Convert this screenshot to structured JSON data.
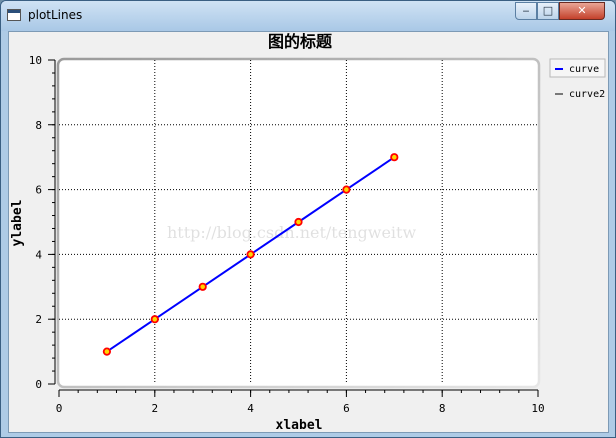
{
  "window": {
    "title": "plotLines",
    "minimize_glyph": "‒",
    "maximize_glyph": "□",
    "close_glyph": "✕"
  },
  "watermark": "http://blog.csdn.net/tengweitw",
  "colors": {
    "curve": "#0000ff",
    "marker_fill": "#ffd700",
    "marker_edge": "#ff0000",
    "curve2": "#000000"
  },
  "chart_data": {
    "type": "line",
    "title": "图的标题",
    "xlabel": "xlabel",
    "ylabel": "ylabel",
    "xlim": [
      0,
      10
    ],
    "ylim": [
      0,
      10
    ],
    "x_ticks": [
      0,
      2,
      4,
      6,
      8,
      10
    ],
    "y_ticks": [
      0,
      2,
      4,
      6,
      8,
      10
    ],
    "grid": true,
    "grid_style": "dotted",
    "legend": "right",
    "series": [
      {
        "name": "curve",
        "x": [
          1,
          2,
          3,
          4,
          5,
          6,
          7
        ],
        "y": [
          1,
          2,
          3,
          4,
          5,
          6,
          7
        ],
        "marker": "circle"
      },
      {
        "name": "curve2",
        "x": [],
        "y": []
      }
    ]
  }
}
